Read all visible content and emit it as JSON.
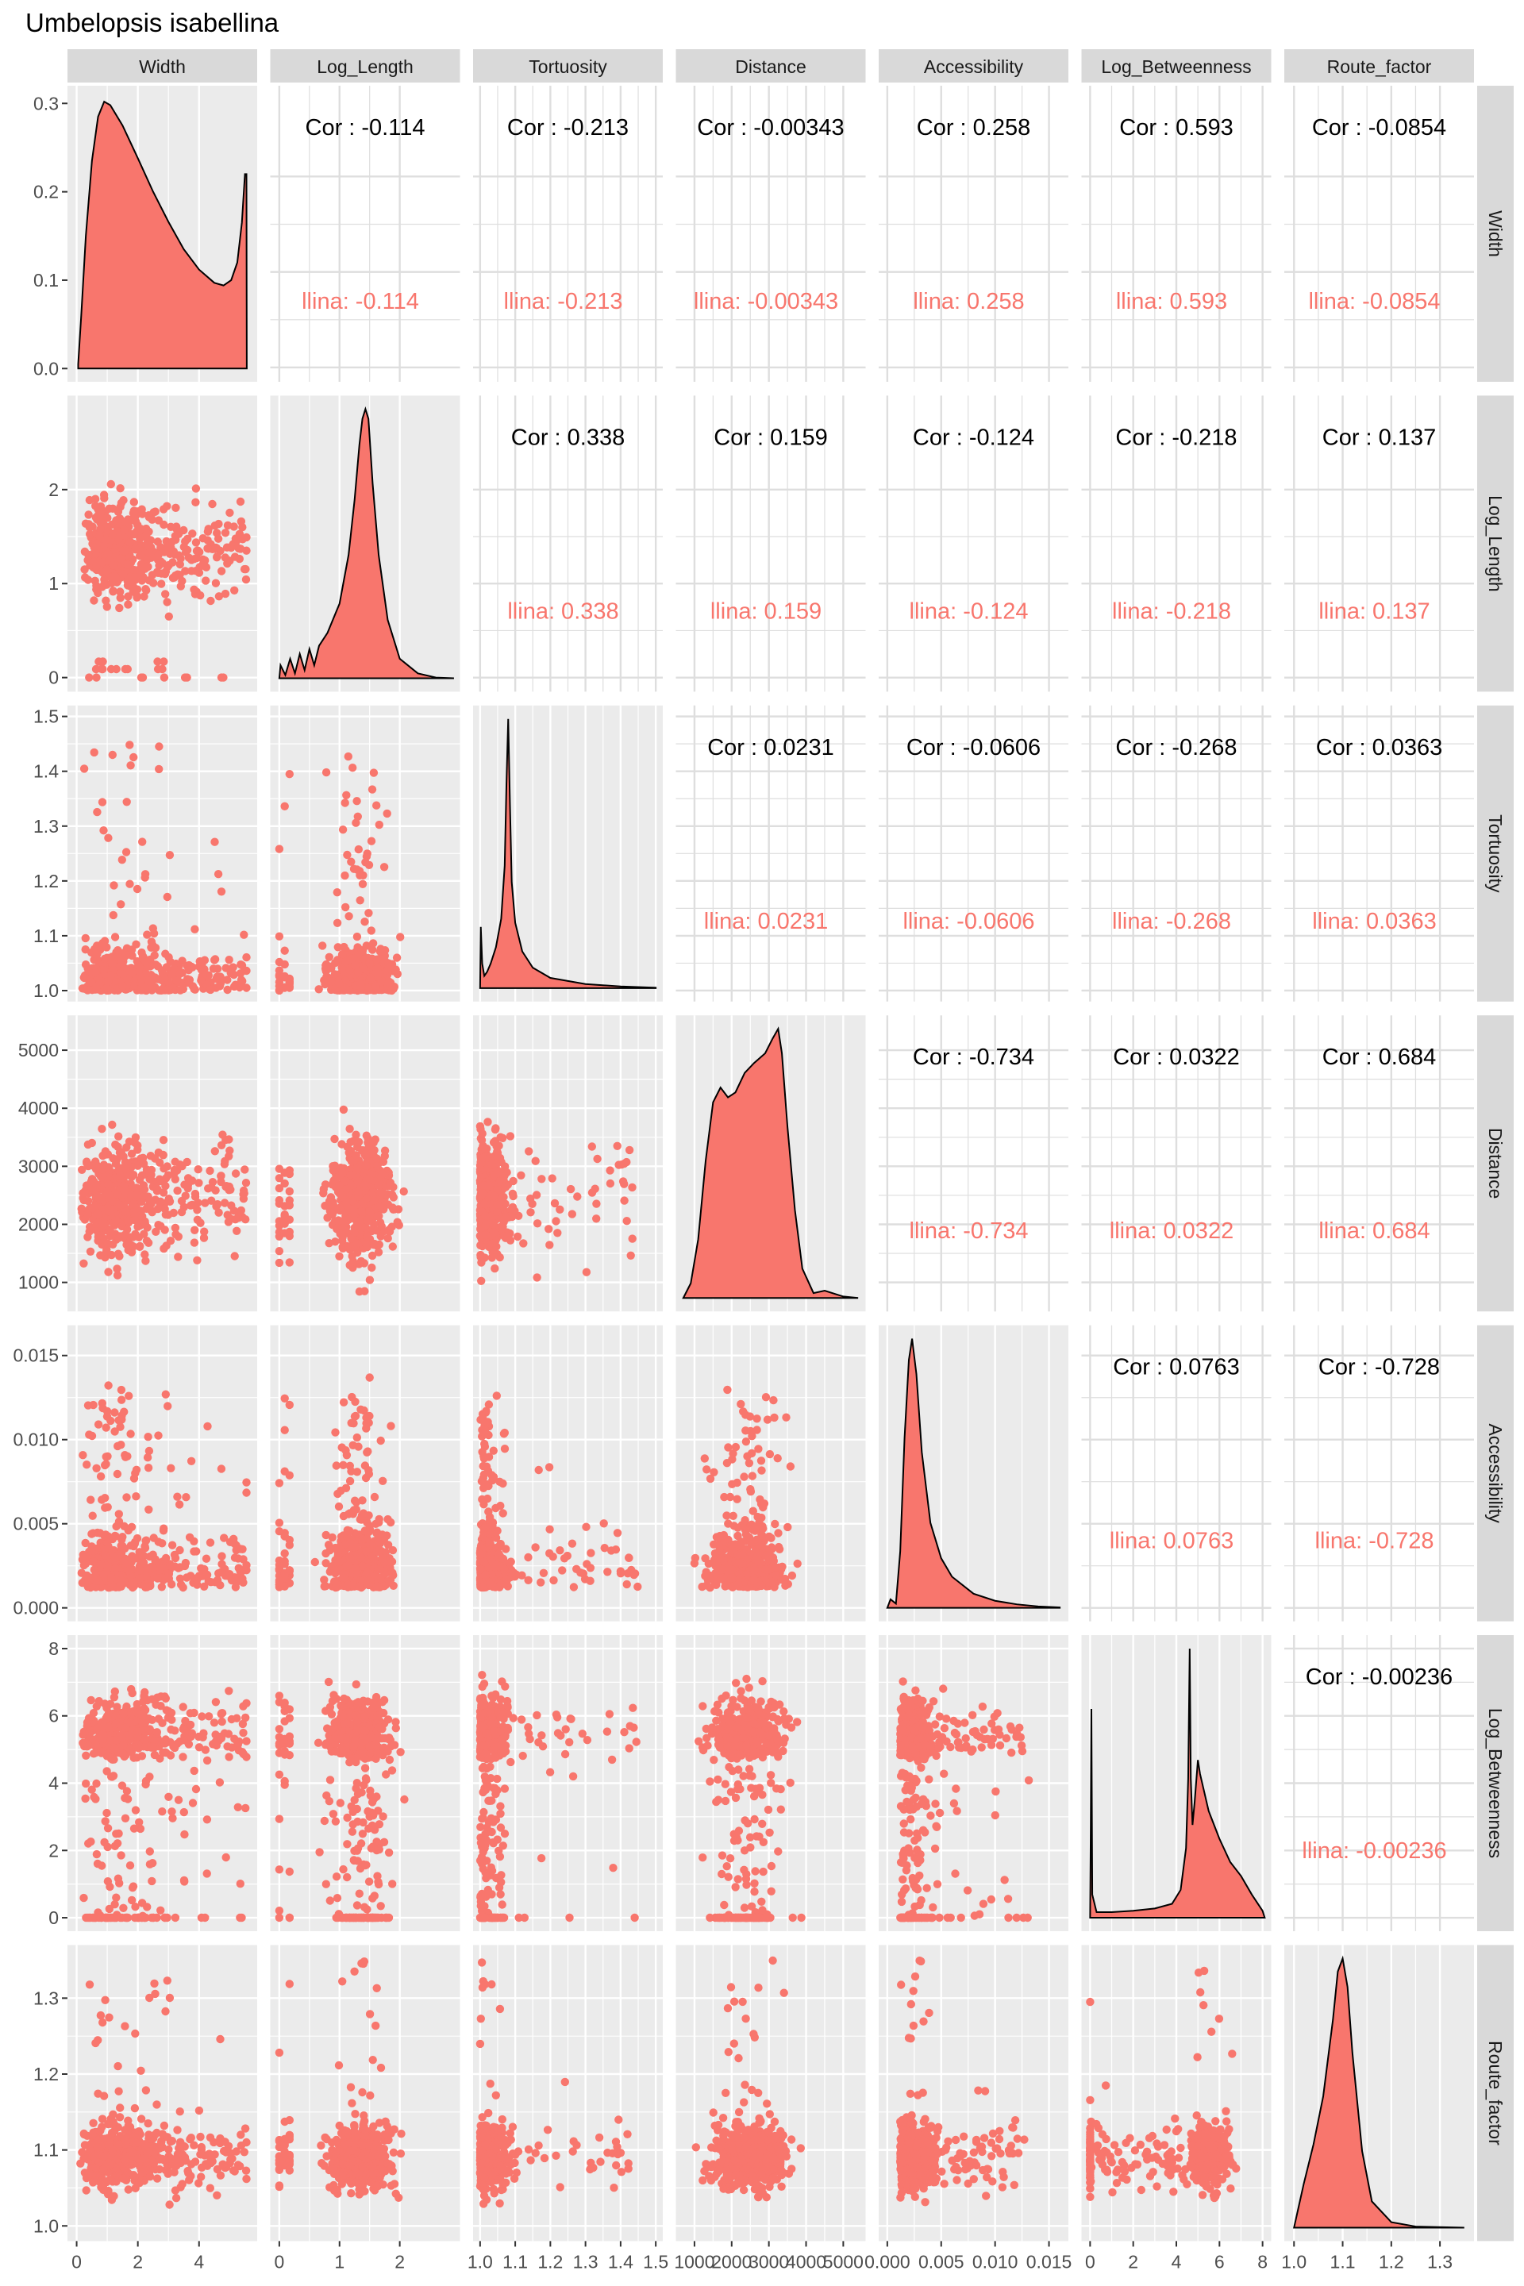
{
  "title": "Umbelopsis isabellina",
  "colors": {
    "group": "#F8766D",
    "panel_bg": "#EBEBEB",
    "strip_bg": "#D9D9D9",
    "grid_major": "#FFFFFF",
    "corr_grid": "#DEDEDE",
    "text_dark": "#1A1A1A",
    "tick_text": "#4D4D4D"
  },
  "chart_data": {
    "type": "scatter-matrix",
    "variables": [
      "Width",
      "Log_Length",
      "Tortuosity",
      "Distance",
      "Accessibility",
      "Log_Betweenness",
      "Route_factor"
    ],
    "group_label_fragment": "llina",
    "cor_prefix": "Cor : ",
    "axes": [
      {
        "name": "Width",
        "lim": [
          -0.3,
          5.9
        ],
        "ticks": [
          0,
          2,
          4
        ],
        "tick_labels": [
          "0",
          "2",
          "4"
        ],
        "density_ylim": [
          -0.015,
          0.32
        ],
        "density_ticks": [
          0.0,
          0.1,
          0.2,
          0.3
        ],
        "density_tick_labels": [
          "0.0",
          "0.1",
          "0.2",
          "0.3"
        ]
      },
      {
        "name": "Log_Length",
        "lim": [
          -0.15,
          3.0
        ],
        "ticks": [
          0,
          1,
          2
        ],
        "tick_labels": [
          "0",
          "1",
          "2"
        ]
      },
      {
        "name": "Tortuosity",
        "lim": [
          0.98,
          1.52
        ],
        "ticks": [
          1.0,
          1.1,
          1.2,
          1.3,
          1.4,
          1.5
        ],
        "tick_labels": [
          "1.0",
          "1.1",
          "1.2",
          "1.3",
          "1.4",
          "1.5"
        ]
      },
      {
        "name": "Distance",
        "lim": [
          500,
          5600
        ],
        "ticks": [
          1000,
          2000,
          3000,
          4000,
          5000
        ],
        "tick_labels": [
          "1000",
          "2000",
          "3000",
          "4000",
          "5000"
        ]
      },
      {
        "name": "Accessibility",
        "lim": [
          -0.0008,
          0.0168
        ],
        "ticks": [
          0,
          0.005,
          0.01,
          0.015
        ],
        "tick_labels": [
          "0.000",
          "0.005",
          "0.010",
          "0.015"
        ]
      },
      {
        "name": "Log_Betweenness",
        "lim": [
          -0.4,
          8.4
        ],
        "ticks": [
          0,
          2,
          4,
          6,
          8
        ],
        "tick_labels": [
          "0",
          "2",
          "4",
          "6",
          "8"
        ]
      },
      {
        "name": "Route_factor",
        "lim": [
          0.98,
          1.37
        ],
        "ticks": [
          1.0,
          1.1,
          1.2,
          1.3
        ],
        "tick_labels": [
          "1.0",
          "1.1",
          "1.2",
          "1.3"
        ]
      }
    ],
    "correlations": [
      {
        "row": 0,
        "col": 1,
        "value": "-0.114"
      },
      {
        "row": 0,
        "col": 2,
        "value": "-0.213"
      },
      {
        "row": 0,
        "col": 3,
        "value": "-0.00343"
      },
      {
        "row": 0,
        "col": 4,
        "value": "0.258"
      },
      {
        "row": 0,
        "col": 5,
        "value": "0.593"
      },
      {
        "row": 0,
        "col": 6,
        "value": "-0.0854"
      },
      {
        "row": 1,
        "col": 2,
        "value": "0.338"
      },
      {
        "row": 1,
        "col": 3,
        "value": "0.159"
      },
      {
        "row": 1,
        "col": 4,
        "value": "-0.124"
      },
      {
        "row": 1,
        "col": 5,
        "value": "-0.218"
      },
      {
        "row": 1,
        "col": 6,
        "value": "0.137"
      },
      {
        "row": 2,
        "col": 3,
        "value": "0.0231"
      },
      {
        "row": 2,
        "col": 4,
        "value": "-0.0606"
      },
      {
        "row": 2,
        "col": 5,
        "value": "-0.268"
      },
      {
        "row": 2,
        "col": 6,
        "value": "0.0363"
      },
      {
        "row": 3,
        "col": 4,
        "value": "-0.734"
      },
      {
        "row": 3,
        "col": 5,
        "value": "0.0322"
      },
      {
        "row": 3,
        "col": 6,
        "value": "0.684"
      },
      {
        "row": 4,
        "col": 5,
        "value": "0.0763"
      },
      {
        "row": 4,
        "col": 6,
        "value": "-0.728"
      },
      {
        "row": 5,
        "col": 6,
        "value": "-0.00236"
      }
    ],
    "densities": [
      {
        "var": "Width",
        "points": [
          [
            0.05,
            0.005
          ],
          [
            0.15,
            0.06
          ],
          [
            0.3,
            0.15
          ],
          [
            0.5,
            0.235
          ],
          [
            0.7,
            0.285
          ],
          [
            0.9,
            0.302
          ],
          [
            1.1,
            0.298
          ],
          [
            1.5,
            0.275
          ],
          [
            2.0,
            0.238
          ],
          [
            2.5,
            0.2
          ],
          [
            3.0,
            0.166
          ],
          [
            3.5,
            0.135
          ],
          [
            4.0,
            0.112
          ],
          [
            4.5,
            0.097
          ],
          [
            4.8,
            0.094
          ],
          [
            5.05,
            0.1
          ],
          [
            5.25,
            0.12
          ],
          [
            5.4,
            0.165
          ],
          [
            5.5,
            0.22
          ],
          [
            5.55,
            0.22
          ],
          [
            5.56,
            0.0
          ]
        ]
      },
      {
        "var": "Log_Length",
        "points": [
          [
            0.0,
            0.0
          ],
          [
            0.02,
            0.04
          ],
          [
            0.1,
            0.01
          ],
          [
            0.18,
            0.06
          ],
          [
            0.26,
            0.015
          ],
          [
            0.34,
            0.075
          ],
          [
            0.42,
            0.025
          ],
          [
            0.5,
            0.09
          ],
          [
            0.58,
            0.04
          ],
          [
            0.66,
            0.1
          ],
          [
            0.8,
            0.14
          ],
          [
            1.0,
            0.23
          ],
          [
            1.15,
            0.38
          ],
          [
            1.25,
            0.55
          ],
          [
            1.33,
            0.72
          ],
          [
            1.38,
            0.8
          ],
          [
            1.43,
            0.83
          ],
          [
            1.48,
            0.8
          ],
          [
            1.55,
            0.6
          ],
          [
            1.65,
            0.38
          ],
          [
            1.8,
            0.18
          ],
          [
            2.0,
            0.06
          ],
          [
            2.3,
            0.015
          ],
          [
            2.6,
            0.002
          ],
          [
            2.9,
            0.0
          ]
        ]
      },
      {
        "var": "Tortuosity",
        "points": [
          [
            1.0,
            0.0
          ],
          [
            1.002,
            15.0
          ],
          [
            1.006,
            6.0
          ],
          [
            1.012,
            3.0
          ],
          [
            1.02,
            4.0
          ],
          [
            1.03,
            6.0
          ],
          [
            1.045,
            10.0
          ],
          [
            1.06,
            17.0
          ],
          [
            1.07,
            30.0
          ],
          [
            1.075,
            50.0
          ],
          [
            1.08,
            66.0
          ],
          [
            1.085,
            45.0
          ],
          [
            1.09,
            26.0
          ],
          [
            1.1,
            16.0
          ],
          [
            1.12,
            9.0
          ],
          [
            1.15,
            5.0
          ],
          [
            1.2,
            2.5
          ],
          [
            1.3,
            1.0
          ],
          [
            1.4,
            0.4
          ],
          [
            1.5,
            0.1
          ]
        ]
      },
      {
        "var": "Distance",
        "points": [
          [
            700,
            0.0
          ],
          [
            900,
            3e-05
          ],
          [
            1100,
            0.00012
          ],
          [
            1300,
            0.00028
          ],
          [
            1500,
            0.0004
          ],
          [
            1700,
            0.00043
          ],
          [
            1900,
            0.00041
          ],
          [
            2100,
            0.00042
          ],
          [
            2350,
            0.00046
          ],
          [
            2600,
            0.00048
          ],
          [
            2900,
            0.0005
          ],
          [
            3100,
            0.00053
          ],
          [
            3250,
            0.00055
          ],
          [
            3350,
            0.0005
          ],
          [
            3500,
            0.00035
          ],
          [
            3700,
            0.00018
          ],
          [
            3900,
            6e-05
          ],
          [
            4200,
            1e-05
          ],
          [
            4500,
            1.5e-05
          ],
          [
            5000,
            3e-06
          ],
          [
            5400,
            0.0
          ]
        ]
      },
      {
        "var": "Accessibility",
        "points": [
          [
            0.0,
            0.0
          ],
          [
            0.0003,
            6.0
          ],
          [
            0.0008,
            3.0
          ],
          [
            0.0012,
            40.0
          ],
          [
            0.0016,
            120.0
          ],
          [
            0.002,
            175.0
          ],
          [
            0.0023,
            190.0
          ],
          [
            0.0027,
            165.0
          ],
          [
            0.0032,
            110.0
          ],
          [
            0.004,
            60.0
          ],
          [
            0.005,
            35.0
          ],
          [
            0.006,
            22.0
          ],
          [
            0.008,
            10.0
          ],
          [
            0.01,
            5.0
          ],
          [
            0.012,
            2.5
          ],
          [
            0.014,
            1.0
          ],
          [
            0.016,
            0.3
          ]
        ]
      },
      {
        "var": "Log_Betweenness",
        "points": [
          [
            0.0,
            0.0
          ],
          [
            0.03,
            0.2
          ],
          [
            0.06,
            0.45
          ],
          [
            0.1,
            0.05
          ],
          [
            0.3,
            0.012
          ],
          [
            1.0,
            0.012
          ],
          [
            2.0,
            0.015
          ],
          [
            3.0,
            0.02
          ],
          [
            3.8,
            0.03
          ],
          [
            4.2,
            0.06
          ],
          [
            4.45,
            0.15
          ],
          [
            4.55,
            0.3
          ],
          [
            4.62,
            0.58
          ],
          [
            4.67,
            0.3
          ],
          [
            4.75,
            0.2
          ],
          [
            4.85,
            0.25
          ],
          [
            5.0,
            0.34
          ],
          [
            5.1,
            0.31
          ],
          [
            5.5,
            0.23
          ],
          [
            6.0,
            0.17
          ],
          [
            6.5,
            0.12
          ],
          [
            7.0,
            0.09
          ],
          [
            7.5,
            0.05
          ],
          [
            8.0,
            0.015
          ],
          [
            8.1,
            0.0
          ]
        ]
      },
      {
        "var": "Route_factor",
        "points": [
          [
            1.0,
            0.0
          ],
          [
            1.01,
            1.0
          ],
          [
            1.02,
            2.0
          ],
          [
            1.04,
            3.8
          ],
          [
            1.06,
            6.0
          ],
          [
            1.08,
            9.5
          ],
          [
            1.09,
            11.7
          ],
          [
            1.1,
            12.3
          ],
          [
            1.11,
            11.0
          ],
          [
            1.12,
            8.0
          ],
          [
            1.14,
            3.5
          ],
          [
            1.16,
            1.2
          ],
          [
            1.2,
            0.25
          ],
          [
            1.25,
            0.05
          ],
          [
            1.35,
            0.0
          ]
        ]
      }
    ]
  }
}
